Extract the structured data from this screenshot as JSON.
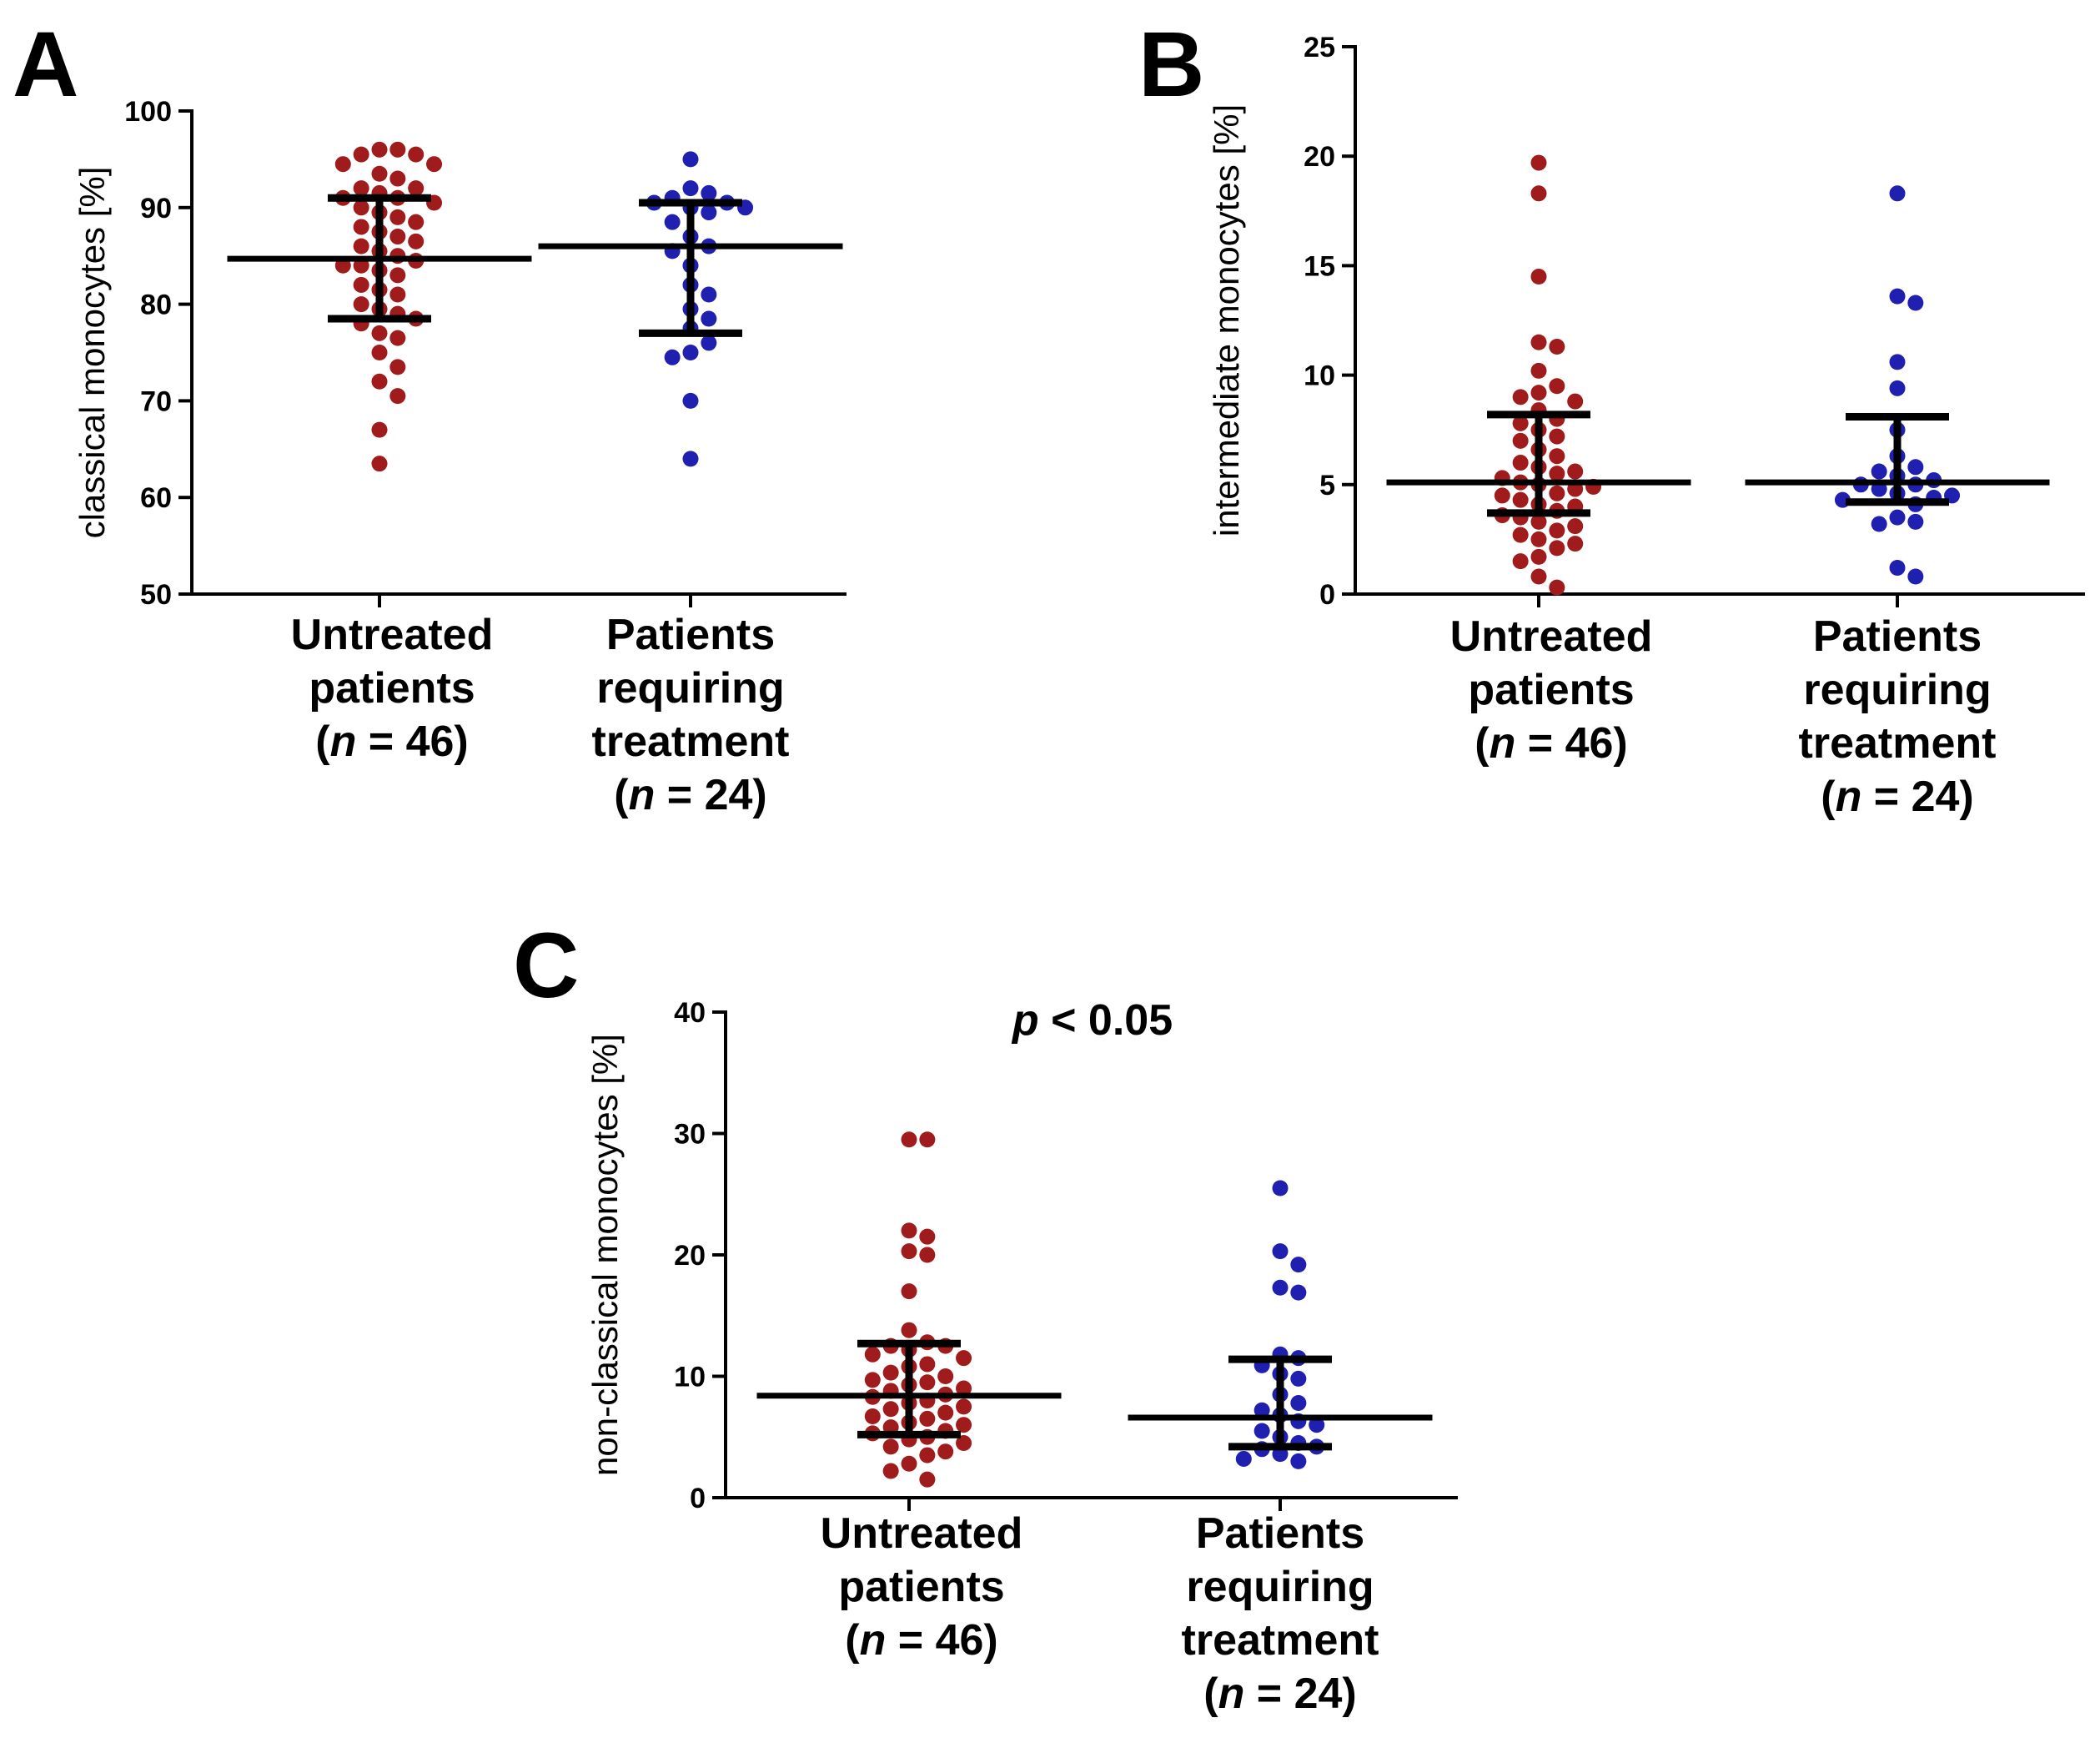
{
  "figure": {
    "colors": {
      "untreated": "#a01c1c",
      "treated": "#1f1fb0",
      "axis": "#000000"
    }
  },
  "chart_data": [
    {
      "type": "scatter",
      "panel": "A",
      "ylabel": "classical monocytes [%]",
      "ylim": [
        50,
        100
      ],
      "yticks": [
        50,
        60,
        70,
        80,
        90,
        100
      ],
      "categories": [
        {
          "lines": [
            "Untreated",
            "patients",
            "(n = 46)"
          ],
          "n_label": "(n = 46)"
        },
        {
          "lines": [
            "Patients",
            "requiring",
            "treatment",
            "(n = 24)"
          ],
          "n_label": "(n = 24)"
        }
      ],
      "series": [
        {
          "name": "Untreated patients",
          "color": "#a01c1c",
          "median": 84.7,
          "q1": 78.5,
          "q3": 91.0,
          "values": [
            96.0,
            96.0,
            95.5,
            95.5,
            94.5,
            94.5,
            93.5,
            93.0,
            92.0,
            92.0,
            91.5,
            91.0,
            91.0,
            90.5,
            90.0,
            89.5,
            89.0,
            88.5,
            88.0,
            87.5,
            87.0,
            86.5,
            86.0,
            85.5,
            85.0,
            84.5,
            84.0,
            84.0,
            83.5,
            83.0,
            82.0,
            81.5,
            81.0,
            80.0,
            79.5,
            79.0,
            78.5,
            78.0,
            77.0,
            76.5,
            75.0,
            73.5,
            72.0,
            70.5,
            67.0,
            63.5
          ]
        },
        {
          "name": "Patients requiring treatment",
          "color": "#1f1fb0",
          "median": 86.0,
          "q1": 77.0,
          "q3": 90.5,
          "values": [
            95.0,
            92.0,
            91.5,
            91.0,
            90.5,
            90.5,
            90.0,
            90.0,
            89.5,
            88.5,
            87.0,
            86.0,
            85.5,
            84.0,
            82.0,
            81.0,
            79.5,
            78.5,
            77.5,
            76.0,
            75.0,
            74.5,
            70.0,
            64.0
          ]
        }
      ]
    },
    {
      "type": "scatter",
      "panel": "B",
      "ylabel": "intermediate monocytes [%]",
      "ylim": [
        0,
        25
      ],
      "yticks": [
        0,
        5,
        10,
        15,
        20,
        25
      ],
      "categories": [
        {
          "lines": [
            "Untreated",
            "patients",
            "(n = 46)"
          ],
          "n_label": "(n = 46)"
        },
        {
          "lines": [
            "Patients",
            "requiring",
            "treatment",
            "(n = 24)"
          ],
          "n_label": "(n = 24)"
        }
      ],
      "series": [
        {
          "name": "Untreated patients",
          "color": "#a01c1c",
          "median": 5.1,
          "q1": 3.7,
          "q3": 8.2,
          "values": [
            19.7,
            18.3,
            14.5,
            11.5,
            11.3,
            10.2,
            9.5,
            9.2,
            9.0,
            8.8,
            8.4,
            8.0,
            7.8,
            7.5,
            7.2,
            7.0,
            6.6,
            6.3,
            6.0,
            5.8,
            5.6,
            5.5,
            5.3,
            5.1,
            5.0,
            4.9,
            4.8,
            4.6,
            4.5,
            4.3,
            4.1,
            4.0,
            3.8,
            3.6,
            3.5,
            3.3,
            3.1,
            2.9,
            2.7,
            2.5,
            2.3,
            2.1,
            1.7,
            1.5,
            0.8,
            0.3
          ]
        },
        {
          "name": "Patients requiring treatment",
          "color": "#1f1fb0",
          "median": 5.1,
          "q1": 4.2,
          "q3": 8.1,
          "values": [
            18.3,
            13.6,
            13.3,
            10.6,
            9.4,
            7.5,
            6.3,
            5.8,
            5.6,
            5.4,
            5.2,
            5.0,
            5.0,
            4.8,
            4.6,
            4.5,
            4.4,
            4.3,
            4.1,
            3.5,
            3.3,
            3.2,
            1.2,
            0.8
          ]
        }
      ]
    },
    {
      "type": "scatter",
      "panel": "C",
      "ylabel": "non-classical monocytes [%]",
      "ylim": [
        0,
        40
      ],
      "yticks": [
        0,
        10,
        20,
        30,
        40
      ],
      "annotation": "p < 0.05",
      "categories": [
        {
          "lines": [
            "Untreated",
            "patients",
            "(n = 46)"
          ],
          "n_label": "(n = 46)"
        },
        {
          "lines": [
            "Patients",
            "requiring",
            "treatment",
            "(n = 24)"
          ],
          "n_label": "(n = 24)"
        }
      ],
      "series": [
        {
          "name": "Untreated patients",
          "color": "#a01c1c",
          "median": 8.4,
          "q1": 5.2,
          "q3": 12.7,
          "values": [
            29.5,
            29.5,
            22.0,
            21.5,
            20.3,
            20.0,
            17.0,
            13.8,
            12.8,
            12.5,
            12.5,
            12.2,
            11.8,
            11.5,
            11.0,
            10.8,
            10.3,
            10.0,
            9.7,
            9.5,
            9.3,
            9.0,
            8.8,
            8.5,
            8.3,
            8.0,
            7.8,
            7.5,
            7.3,
            7.0,
            6.7,
            6.5,
            6.2,
            6.0,
            5.8,
            5.5,
            5.3,
            5.0,
            4.8,
            4.5,
            4.2,
            3.8,
            3.5,
            2.8,
            2.2,
            1.5
          ]
        },
        {
          "name": "Patients requiring treatment",
          "color": "#1f1fb0",
          "median": 6.6,
          "q1": 4.2,
          "q3": 11.4,
          "values": [
            25.5,
            20.3,
            19.2,
            17.3,
            16.9,
            11.8,
            11.5,
            10.9,
            10.2,
            9.8,
            8.5,
            7.8,
            7.2,
            6.8,
            6.3,
            6.0,
            5.5,
            5.0,
            4.5,
            4.2,
            4.0,
            3.6,
            3.2,
            3.0
          ]
        }
      ]
    }
  ]
}
